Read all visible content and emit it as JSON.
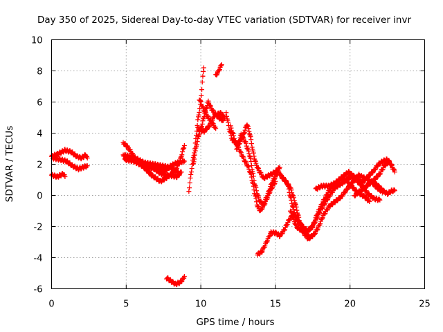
{
  "chart_data": {
    "type": "scatter",
    "title": "Day 350 of 2025, Sidereal Day-to-day VTEC variation (SDTVAR) for receiver invr",
    "xlabel": "GPS time / hours",
    "ylabel": "SDTVAR / TECUs",
    "xlim": [
      0,
      25
    ],
    "ylim": [
      -6,
      10
    ],
    "xticks": [
      0,
      5,
      10,
      15,
      20,
      25
    ],
    "yticks": [
      -6,
      -4,
      -2,
      0,
      2,
      4,
      6,
      8,
      10
    ],
    "grid": true,
    "marker": "+",
    "color": "#ff0000",
    "tracks": [
      [
        [
          0.0,
          2.5
        ],
        [
          0.5,
          2.7
        ],
        [
          0.9,
          2.9
        ],
        [
          1.3,
          2.8
        ],
        [
          1.7,
          2.5
        ],
        [
          2.0,
          2.4
        ],
        [
          2.3,
          2.6
        ],
        [
          2.4,
          2.4
        ]
      ],
      [
        [
          0.1,
          2.4
        ],
        [
          0.6,
          2.3
        ],
        [
          1.0,
          2.2
        ],
        [
          1.4,
          1.9
        ],
        [
          1.8,
          1.7
        ],
        [
          2.1,
          1.8
        ],
        [
          2.4,
          1.9
        ]
      ],
      [
        [
          0.0,
          1.3
        ],
        [
          0.4,
          1.2
        ],
        [
          0.8,
          1.4
        ],
        [
          0.9,
          1.2
        ]
      ],
      [
        [
          4.8,
          3.4
        ],
        [
          5.1,
          3.1
        ],
        [
          5.6,
          2.4
        ],
        [
          6.2,
          2.1
        ],
        [
          6.8,
          2.0
        ],
        [
          7.4,
          1.9
        ],
        [
          7.9,
          1.8
        ],
        [
          8.3,
          1.6
        ],
        [
          8.6,
          1.4
        ]
      ],
      [
        [
          4.8,
          2.6
        ],
        [
          5.2,
          2.5
        ],
        [
          5.8,
          2.1
        ],
        [
          6.3,
          1.8
        ],
        [
          6.9,
          1.7
        ],
        [
          7.3,
          1.4
        ],
        [
          7.8,
          1.3
        ],
        [
          8.4,
          1.2
        ],
        [
          8.7,
          1.5
        ]
      ],
      [
        [
          4.9,
          2.3
        ],
        [
          5.5,
          2.2
        ],
        [
          6.1,
          1.9
        ],
        [
          6.7,
          1.3
        ],
        [
          7.3,
          0.9
        ],
        [
          7.8,
          1.2
        ],
        [
          8.3,
          1.6
        ],
        [
          8.6,
          2.2
        ],
        [
          8.8,
          2.9
        ],
        [
          8.9,
          3.2
        ]
      ],
      [
        [
          6.5,
          2.0
        ],
        [
          7.1,
          1.7
        ],
        [
          7.6,
          1.6
        ],
        [
          8.0,
          1.9
        ],
        [
          8.4,
          2.1
        ],
        [
          8.9,
          2.2
        ]
      ],
      [
        [
          7.7,
          -5.3
        ],
        [
          8.0,
          -5.5
        ],
        [
          8.3,
          -5.7
        ],
        [
          8.6,
          -5.6
        ],
        [
          8.8,
          -5.4
        ],
        [
          8.9,
          -5.2
        ]
      ],
      [
        [
          9.2,
          0.3
        ],
        [
          9.4,
          1.8
        ],
        [
          9.6,
          3.0
        ],
        [
          9.8,
          4.8
        ],
        [
          10.0,
          6.0
        ],
        [
          10.1,
          7.3
        ],
        [
          10.2,
          8.2
        ]
      ],
      [
        [
          9.5,
          2.0
        ],
        [
          9.7,
          3.2
        ],
        [
          9.9,
          4.0
        ],
        [
          10.1,
          4.6
        ],
        [
          10.3,
          5.4
        ],
        [
          10.5,
          6.0
        ],
        [
          10.7,
          5.6
        ],
        [
          10.9,
          5.3
        ],
        [
          11.2,
          5.0
        ],
        [
          11.5,
          4.8
        ]
      ],
      [
        [
          9.8,
          4.3
        ],
        [
          10.2,
          4.1
        ],
        [
          10.6,
          4.5
        ],
        [
          10.9,
          5.1
        ],
        [
          11.3,
          5.3
        ],
        [
          11.6,
          5.0
        ]
      ],
      [
        [
          9.9,
          6.2
        ],
        [
          10.2,
          5.5
        ],
        [
          10.5,
          5.0
        ],
        [
          10.8,
          4.6
        ],
        [
          11.0,
          4.3
        ]
      ],
      [
        [
          11.0,
          7.7
        ],
        [
          11.2,
          8.0
        ],
        [
          11.4,
          8.4
        ]
      ],
      [
        [
          11.7,
          5.3
        ],
        [
          11.9,
          4.3
        ],
        [
          12.1,
          3.6
        ],
        [
          12.5,
          3.2
        ],
        [
          12.9,
          4.0
        ],
        [
          13.1,
          4.6
        ],
        [
          13.3,
          3.9
        ],
        [
          13.5,
          2.8
        ],
        [
          13.7,
          2.0
        ],
        [
          13.9,
          1.6
        ],
        [
          14.2,
          1.1
        ],
        [
          14.6,
          1.3
        ],
        [
          15.0,
          1.5
        ],
        [
          15.3,
          1.8
        ]
      ],
      [
        [
          12.0,
          4.4
        ],
        [
          12.3,
          3.5
        ],
        [
          12.6,
          2.9
        ],
        [
          12.9,
          2.3
        ],
        [
          13.2,
          1.8
        ],
        [
          13.4,
          1.2
        ],
        [
          13.6,
          0.2
        ],
        [
          13.8,
          -0.7
        ],
        [
          14.0,
          -1.0
        ],
        [
          14.3,
          -0.5
        ],
        [
          14.6,
          0.2
        ],
        [
          15.0,
          0.9
        ]
      ],
      [
        [
          12.4,
          3.0
        ],
        [
          12.7,
          3.9
        ],
        [
          13.0,
          3.4
        ],
        [
          13.3,
          2.5
        ],
        [
          13.6,
          0.8
        ],
        [
          13.9,
          -0.3
        ],
        [
          14.2,
          -0.6
        ],
        [
          14.5,
          0.1
        ],
        [
          14.8,
          0.9
        ],
        [
          15.2,
          1.5
        ],
        [
          15.6,
          1.0
        ],
        [
          16.0,
          0.5
        ],
        [
          16.3,
          -0.4
        ],
        [
          16.6,
          -1.6
        ],
        [
          16.9,
          -2.3
        ],
        [
          17.2,
          -2.5
        ]
      ],
      [
        [
          13.8,
          -3.8
        ],
        [
          14.1,
          -3.6
        ],
        [
          14.4,
          -3.0
        ],
        [
          14.7,
          -2.4
        ],
        [
          15.0,
          -2.4
        ],
        [
          15.3,
          -2.6
        ],
        [
          15.6,
          -2.2
        ],
        [
          15.9,
          -1.6
        ],
        [
          16.2,
          -1.2
        ],
        [
          16.5,
          -1.6
        ],
        [
          16.8,
          -2.0
        ],
        [
          17.2,
          -2.3
        ],
        [
          17.6,
          -1.8
        ],
        [
          18.0,
          -1.0
        ],
        [
          18.5,
          -0.2
        ],
        [
          19.0,
          0.5
        ],
        [
          19.5,
          0.8
        ],
        [
          20.0,
          1.2
        ],
        [
          20.4,
          1.0
        ],
        [
          20.8,
          0.6
        ],
        [
          21.2,
          0.1
        ],
        [
          21.6,
          -0.2
        ],
        [
          22.0,
          -0.3
        ]
      ],
      [
        [
          15.4,
          1.2
        ],
        [
          15.8,
          0.8
        ],
        [
          16.1,
          -0.5
        ],
        [
          16.4,
          -1.5
        ],
        [
          16.8,
          -2.1
        ],
        [
          17.1,
          -2.3
        ],
        [
          17.5,
          -2.0
        ],
        [
          17.8,
          -1.2
        ],
        [
          18.2,
          -0.4
        ],
        [
          18.6,
          0.3
        ],
        [
          19.0,
          0.8
        ],
        [
          19.4,
          1.1
        ],
        [
          19.8,
          0.9
        ],
        [
          20.1,
          0.6
        ],
        [
          20.5,
          0.2
        ],
        [
          21.0,
          -0.1
        ],
        [
          21.3,
          -0.4
        ]
      ],
      [
        [
          16.0,
          -1.0
        ],
        [
          16.4,
          -2.0
        ],
        [
          16.8,
          -2.3
        ],
        [
          17.2,
          -2.8
        ],
        [
          17.6,
          -2.5
        ],
        [
          17.9,
          -2.0
        ],
        [
          18.2,
          -1.3
        ],
        [
          18.6,
          -0.7
        ],
        [
          19.0,
          -0.4
        ],
        [
          19.4,
          -0.1
        ],
        [
          19.8,
          0.4
        ],
        [
          20.2,
          0.9
        ],
        [
          20.6,
          1.3
        ],
        [
          21.0,
          1.1
        ],
        [
          21.4,
          0.9
        ],
        [
          21.8,
          0.5
        ],
        [
          22.2,
          0.2
        ]
      ],
      [
        [
          17.7,
          0.4
        ],
        [
          18.1,
          0.6
        ],
        [
          18.6,
          0.6
        ],
        [
          19.0,
          0.8
        ],
        [
          19.5,
          1.2
        ],
        [
          19.9,
          1.5
        ],
        [
          20.3,
          1.2
        ],
        [
          20.8,
          0.8
        ],
        [
          21.2,
          1.2
        ],
        [
          21.6,
          1.6
        ],
        [
          21.9,
          2.0
        ],
        [
          22.2,
          2.2
        ],
        [
          22.5,
          2.3
        ],
        [
          22.8,
          1.9
        ],
        [
          23.0,
          1.5
        ]
      ],
      [
        [
          20.3,
          0.0
        ],
        [
          20.7,
          0.3
        ],
        [
          21.1,
          0.6
        ],
        [
          21.5,
          0.9
        ],
        [
          21.9,
          0.6
        ],
        [
          22.2,
          0.3
        ],
        [
          22.5,
          0.1
        ],
        [
          22.8,
          0.3
        ],
        [
          23.0,
          0.3
        ]
      ],
      [
        [
          21.2,
          0.7
        ],
        [
          21.6,
          1.0
        ],
        [
          22.0,
          1.4
        ],
        [
          22.3,
          1.9
        ],
        [
          22.6,
          2.2
        ],
        [
          22.9,
          1.7
        ]
      ]
    ]
  }
}
